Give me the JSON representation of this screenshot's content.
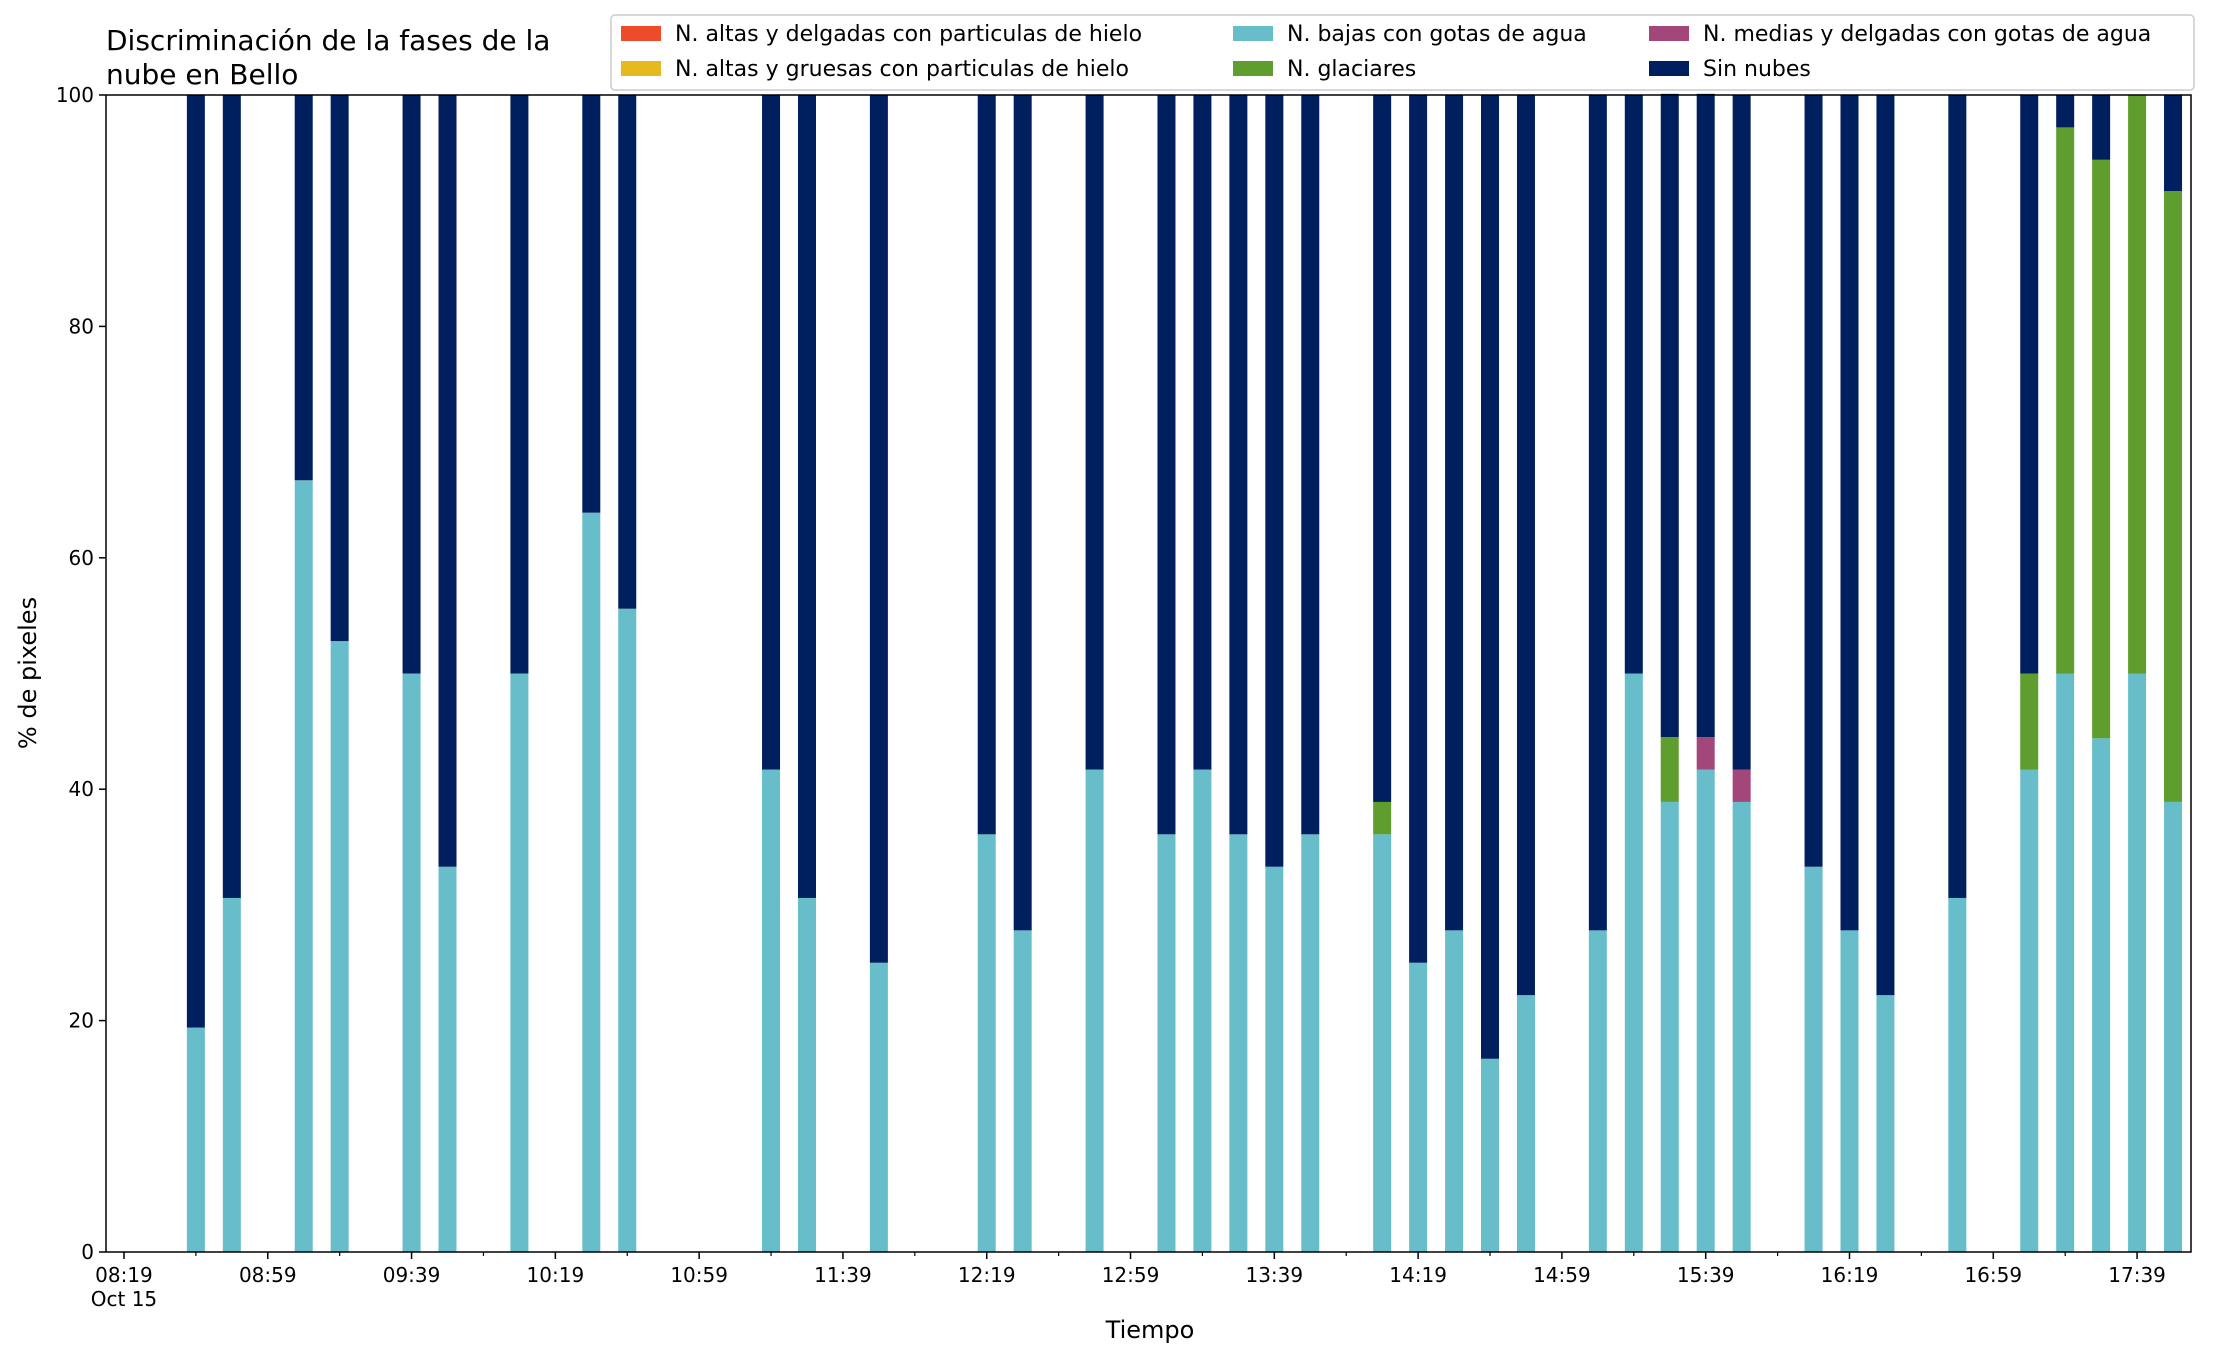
{
  "chart_data": {
    "type": "bar",
    "stacked": true,
    "title_lines": [
      "Discriminación de la fases de la",
      "nube en Bello"
    ],
    "xlabel": "Tiempo",
    "ylabel": "% de pixeles",
    "ylim": [
      0,
      100
    ],
    "yticks": [
      0,
      20,
      40,
      60,
      80,
      100
    ],
    "x_range": [
      "08:14",
      "17:54"
    ],
    "xticks": [
      {
        "time": "08:19",
        "label": "08:19",
        "sublabel": "Oct 15"
      },
      {
        "time": "08:59",
        "label": "08:59"
      },
      {
        "time": "09:39",
        "label": "09:39"
      },
      {
        "time": "10:19",
        "label": "10:19"
      },
      {
        "time": "10:59",
        "label": "10:59"
      },
      {
        "time": "11:39",
        "label": "11:39"
      },
      {
        "time": "12:19",
        "label": "12:19"
      },
      {
        "time": "12:59",
        "label": "12:59"
      },
      {
        "time": "13:39",
        "label": "13:39"
      },
      {
        "time": "14:19",
        "label": "14:19"
      },
      {
        "time": "14:59",
        "label": "14:59"
      },
      {
        "time": "15:39",
        "label": "15:39"
      },
      {
        "time": "16:19",
        "label": "16:19"
      },
      {
        "time": "16:59",
        "label": "16:59"
      },
      {
        "time": "17:39",
        "label": "17:39"
      }
    ],
    "grid": false,
    "legend_placement": "top-right",
    "legend": [
      {
        "name": "N. altas y delgadas con particulas de hielo",
        "color": "#EE4B2B"
      },
      {
        "name": "N. altas y gruesas con particulas de hielo",
        "color": "#E6B91E"
      },
      {
        "name": "N. bajas con gotas de agua",
        "color": "#67BECA"
      },
      {
        "name": "N. glaciares",
        "color": "#5F9E2E"
      },
      {
        "name": "N. medias y delgadas con gotas de agua",
        "color": "#A3467A"
      },
      {
        "name": "Sin nubes",
        "color": "#001F5F"
      }
    ],
    "x": [
      "08:39",
      "08:49",
      "09:09",
      "09:19",
      "09:39",
      "09:49",
      "10:09",
      "10:29",
      "10:39",
      "11:19",
      "11:29",
      "11:49",
      "12:19",
      "12:29",
      "12:49",
      "13:09",
      "13:19",
      "13:29",
      "13:39",
      "13:49",
      "14:09",
      "14:19",
      "14:29",
      "14:39",
      "14:49",
      "15:09",
      "15:19",
      "15:29",
      "15:39",
      "15:49",
      "16:09",
      "16:19",
      "16:29",
      "16:49",
      "17:09",
      "17:19",
      "17:29",
      "17:39",
      "17:49"
    ],
    "series": [
      {
        "name": "N. altas y delgadas con particulas de hielo",
        "color": "#EE4B2B",
        "values": [
          0,
          0,
          0,
          0,
          0,
          0,
          0,
          0,
          0,
          0,
          0,
          0,
          0,
          0,
          0,
          0,
          0,
          0,
          0,
          0,
          0,
          0,
          0,
          0,
          0,
          0,
          0,
          0,
          0,
          0,
          0,
          0,
          0,
          0,
          0,
          0,
          0,
          0,
          0
        ]
      },
      {
        "name": "N. altas y gruesas con particulas de hielo",
        "color": "#E6B91E",
        "values": [
          0,
          0,
          0,
          0,
          0,
          0,
          0,
          0,
          0,
          0,
          0,
          0,
          0,
          0,
          0,
          0,
          0,
          0,
          0,
          0,
          0,
          0,
          0,
          0,
          0,
          0,
          0,
          0,
          0,
          0,
          0,
          0,
          0,
          0,
          0,
          0,
          0,
          0,
          0
        ]
      },
      {
        "name": "N. bajas con gotas de agua",
        "color": "#67BECA",
        "values": [
          19.4,
          30.6,
          66.7,
          52.8,
          50.0,
          33.3,
          50.0,
          63.9,
          55.6,
          41.7,
          30.6,
          25.0,
          36.1,
          27.8,
          41.7,
          36.1,
          41.7,
          36.1,
          33.3,
          36.1,
          36.1,
          25.0,
          27.8,
          16.7,
          22.2,
          27.8,
          50.0,
          38.9,
          41.7,
          38.9,
          33.3,
          27.8,
          22.2,
          30.6,
          41.7,
          50.0,
          44.4,
          50.0,
          38.9
        ]
      },
      {
        "name": "N. glaciares",
        "color": "#5F9E2E",
        "values": [
          0,
          0,
          0,
          0,
          0,
          0,
          0,
          0,
          0,
          0,
          0,
          0,
          0,
          0,
          0,
          0,
          0,
          0,
          0,
          0,
          2.8,
          0,
          0,
          0,
          0,
          0,
          0,
          5.6,
          0,
          0,
          0,
          0,
          0,
          0,
          8.3,
          47.2,
          50.0,
          50.0,
          52.8
        ]
      },
      {
        "name": "N. medias y delgadas con gotas de agua",
        "color": "#A3467A",
        "values": [
          0,
          0,
          0,
          0,
          0,
          0,
          0,
          0,
          0,
          0,
          0,
          0,
          0,
          0,
          0,
          0,
          0,
          0,
          0,
          0,
          0,
          0,
          0,
          0,
          0,
          0,
          0,
          0,
          2.8,
          2.8,
          0,
          0,
          0,
          0,
          0,
          0,
          0,
          0,
          0
        ]
      },
      {
        "name": "Sin nubes",
        "color": "#001F5F",
        "values": [
          80.6,
          69.4,
          33.3,
          47.2,
          50.0,
          66.7,
          50.0,
          36.1,
          44.4,
          58.3,
          69.4,
          75.0,
          63.9,
          72.2,
          58.3,
          63.9,
          58.3,
          63.9,
          66.7,
          63.9,
          61.1,
          75.0,
          72.2,
          83.3,
          77.8,
          72.2,
          50.0,
          55.6,
          55.6,
          58.3,
          66.7,
          72.2,
          77.8,
          69.4,
          50.0,
          2.8,
          5.6,
          0,
          8.3
        ]
      }
    ]
  }
}
